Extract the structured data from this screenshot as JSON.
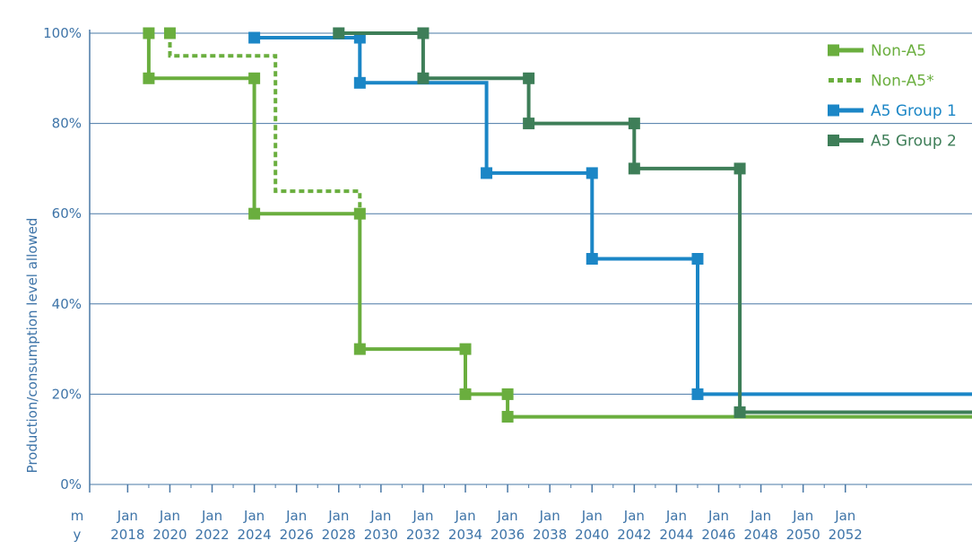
{
  "chart_data": {
    "type": "line",
    "title": "",
    "ylabel": "Production/consumption level allowed",
    "xlabel_prefix": [
      "m",
      "y"
    ],
    "y_ticks": [
      "0%",
      "20%",
      "40%",
      "60%",
      "80%",
      "100%"
    ],
    "ylim": [
      0,
      100
    ],
    "xlim": [
      2016.2,
      2058
    ],
    "x_ticks": [
      {
        "top": "Jan",
        "bottom": "2018",
        "year": 2018
      },
      {
        "top": "Jan",
        "bottom": "2020",
        "year": 2020
      },
      {
        "top": "Jan",
        "bottom": "2022",
        "year": 2022
      },
      {
        "top": "Jan",
        "bottom": "2024",
        "year": 2024
      },
      {
        "top": "Jan",
        "bottom": "2026",
        "year": 2026
      },
      {
        "top": "Jan",
        "bottom": "2028",
        "year": 2028
      },
      {
        "top": "Jan",
        "bottom": "2030",
        "year": 2030
      },
      {
        "top": "Jan",
        "bottom": "2032",
        "year": 2032
      },
      {
        "top": "Jan",
        "bottom": "2034",
        "year": 2034
      },
      {
        "top": "Jan",
        "bottom": "2036",
        "year": 2036
      },
      {
        "top": "Jan",
        "bottom": "2038",
        "year": 2038
      },
      {
        "top": "Jan",
        "bottom": "2040",
        "year": 2040
      },
      {
        "top": "Jan",
        "bottom": "2042",
        "year": 2042
      },
      {
        "top": "Jan",
        "bottom": "2044",
        "year": 2044
      },
      {
        "top": "Jan",
        "bottom": "2046",
        "year": 2046
      },
      {
        "top": "Jan",
        "bottom": "2048",
        "year": 2048
      },
      {
        "top": "Jan",
        "bottom": "2050",
        "year": 2050
      },
      {
        "top": "Jan",
        "bottom": "2052",
        "year": 2052
      }
    ],
    "minor_tick_years": [
      2019,
      2021,
      2023,
      2025,
      2027,
      2029,
      2031,
      2033,
      2035,
      2037,
      2039,
      2041,
      2043,
      2045,
      2047,
      2049,
      2051,
      2053
    ],
    "grid": true,
    "legend_position": "top-right",
    "series": [
      {
        "name": "Non-A5",
        "color": "#6aae3e",
        "style": "solid",
        "points": [
          [
            2019,
            100
          ],
          [
            2019,
            90
          ],
          [
            2024,
            90
          ],
          [
            2024,
            60
          ],
          [
            2029,
            60
          ],
          [
            2029,
            30
          ],
          [
            2034,
            30
          ],
          [
            2034,
            20
          ],
          [
            2036,
            20
          ],
          [
            2036,
            15
          ],
          [
            2060,
            15
          ]
        ],
        "markers": [
          [
            2019,
            100
          ],
          [
            2019,
            90
          ],
          [
            2024,
            90
          ],
          [
            2024,
            60
          ],
          [
            2029,
            60
          ],
          [
            2029,
            30
          ],
          [
            2034,
            30
          ],
          [
            2034,
            20
          ],
          [
            2036,
            20
          ],
          [
            2036,
            15
          ]
        ]
      },
      {
        "name": "Non-A5*",
        "color": "#6aae3e",
        "style": "dotted",
        "points": [
          [
            2020,
            100
          ],
          [
            2020,
            95
          ],
          [
            2025,
            95
          ],
          [
            2025,
            65
          ],
          [
            2029,
            65
          ],
          [
            2029,
            60
          ]
        ],
        "markers": [
          [
            2020,
            100
          ]
        ]
      },
      {
        "name": "A5 Group 1",
        "color": "#1b86c6",
        "style": "solid",
        "points": [
          [
            2024,
            99
          ],
          [
            2029,
            99
          ],
          [
            2029,
            89
          ],
          [
            2035,
            89
          ],
          [
            2035,
            69
          ],
          [
            2040,
            69
          ],
          [
            2040,
            50
          ],
          [
            2045,
            50
          ],
          [
            2045,
            20
          ],
          [
            2060,
            20
          ]
        ],
        "markers": [
          [
            2024,
            99
          ],
          [
            2029,
            99
          ],
          [
            2029,
            89
          ],
          [
            2035,
            69
          ],
          [
            2040,
            69
          ],
          [
            2040,
            50
          ],
          [
            2045,
            50
          ],
          [
            2045,
            20
          ]
        ]
      },
      {
        "name": "A5 Group 2",
        "color": "#3e7e58",
        "style": "solid",
        "points": [
          [
            2028,
            100
          ],
          [
            2032,
            100
          ],
          [
            2032,
            90
          ],
          [
            2037,
            90
          ],
          [
            2037,
            80
          ],
          [
            2042,
            80
          ],
          [
            2042,
            70
          ],
          [
            2047,
            70
          ],
          [
            2047,
            16
          ],
          [
            2060,
            16
          ]
        ],
        "markers": [
          [
            2028,
            100
          ],
          [
            2032,
            100
          ],
          [
            2032,
            90
          ],
          [
            2037,
            90
          ],
          [
            2037,
            80
          ],
          [
            2042,
            80
          ],
          [
            2042,
            70
          ],
          [
            2047,
            70
          ],
          [
            2047,
            16
          ]
        ]
      }
    ]
  }
}
